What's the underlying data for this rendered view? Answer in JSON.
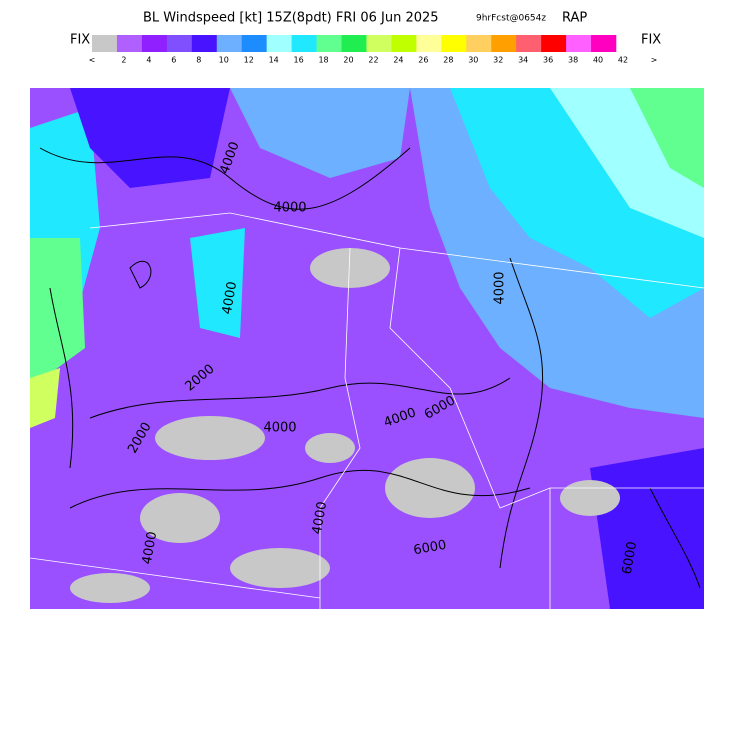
{
  "header": {
    "title": "BL Windspeed [kt] 15Z(8pdt) FRI 06 Jun 2025",
    "forecast": "9hrFcst@0654z",
    "model": "RAP"
  },
  "legend": {
    "left_label": "FIX",
    "right_label": "FIX",
    "colors": [
      "#c8c8c8",
      "#b060ff",
      "#9020ff",
      "#8050ff",
      "#4814ff",
      "#6cb0ff",
      "#1c8cff",
      "#a0ffff",
      "#20e8ff",
      "#60ff90",
      "#20ee50",
      "#d0ff60",
      "#c0ff00",
      "#ffff9a",
      "#ffff00",
      "#ffd060",
      "#ffa000",
      "#ff6070",
      "#ff0000",
      "#ff60ff",
      "#ff00c0"
    ],
    "labels": [
      "<",
      "2",
      "4",
      "6",
      "8",
      "10",
      "12",
      "14",
      "16",
      "18",
      "20",
      "22",
      "24",
      "26",
      "28",
      "30",
      "32",
      "34",
      "36",
      "38",
      "40",
      "42",
      ">"
    ]
  },
  "map": {
    "contour_labels": [
      "4000",
      "4000",
      "4000",
      "2000",
      "4000",
      "4000",
      "6000",
      "4000",
      "4000",
      "2000",
      "6000",
      "4000",
      "6000"
    ]
  }
}
